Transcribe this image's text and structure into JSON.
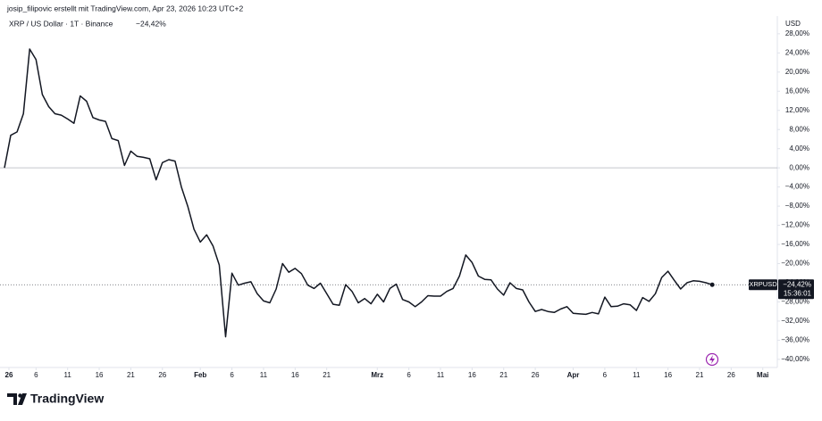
{
  "attribution": "josip_filipovic erstellt mit TradingView.com, Apr 23, 2026 10:23 UTC+2",
  "brand": "TradingView",
  "currency": "USD",
  "symbol": "XRPUSD",
  "countdown": "15:36:01",
  "chart_data": {
    "type": "line",
    "title": "XRP / US Dollar · 1T · Binance",
    "change_label": "−24,42%",
    "xlim": [
      -0.7,
      122.3
    ],
    "xticks": [
      {
        "value": 0,
        "label": "26"
      },
      {
        "value": 5,
        "label": "6"
      },
      {
        "value": 10,
        "label": "11"
      },
      {
        "value": 15,
        "label": "16"
      },
      {
        "value": 20,
        "label": "21"
      },
      {
        "value": 25,
        "label": "26"
      },
      {
        "value": 31,
        "label": "Feb"
      },
      {
        "value": 36,
        "label": "6"
      },
      {
        "value": 41,
        "label": "11"
      },
      {
        "value": 46,
        "label": "16"
      },
      {
        "value": 51,
        "label": "21"
      },
      {
        "value": 59,
        "label": "Mrz"
      },
      {
        "value": 64,
        "label": "6"
      },
      {
        "value": 69,
        "label": "11"
      },
      {
        "value": 74,
        "label": "16"
      },
      {
        "value": 79,
        "label": "21"
      },
      {
        "value": 84,
        "label": "26"
      },
      {
        "value": 90,
        "label": "Apr"
      },
      {
        "value": 95,
        "label": "6"
      },
      {
        "value": 100,
        "label": "11"
      },
      {
        "value": 105,
        "label": "16"
      },
      {
        "value": 110,
        "label": "21"
      },
      {
        "value": 115,
        "label": "26"
      },
      {
        "value": 120,
        "label": "Mai"
      }
    ],
    "ylim": [
      -41.7,
      31.7
    ],
    "yticks": [
      {
        "value": 28,
        "label": "28,00%"
      },
      {
        "value": 24,
        "label": "24,00%"
      },
      {
        "value": 20,
        "label": "20,00%"
      },
      {
        "value": 16,
        "label": "16,00%"
      },
      {
        "value": 12,
        "label": "12,00%"
      },
      {
        "value": 8,
        "label": "8,00%"
      },
      {
        "value": 4,
        "label": "4,00%"
      },
      {
        "value": 0,
        "label": "0,00%"
      },
      {
        "value": -4,
        "label": "−4,00%"
      },
      {
        "value": -8,
        "label": "−8,00%"
      },
      {
        "value": -12,
        "label": "−12,00%"
      },
      {
        "value": -16,
        "label": "−16,00%"
      },
      {
        "value": -20,
        "label": "−20,00%"
      },
      {
        "value": -24,
        "label": "−24,00%"
      },
      {
        "value": -28,
        "label": "−28,00%"
      },
      {
        "value": -32,
        "label": "−32,00%"
      },
      {
        "value": -36,
        "label": "−36,00%"
      },
      {
        "value": -40,
        "label": "−40,00%"
      }
    ],
    "grid": false,
    "baseline": 0,
    "color": "#131722",
    "x": [
      0,
      1,
      2,
      3,
      4,
      5,
      6,
      7,
      8,
      9,
      10,
      11,
      12,
      13,
      14,
      15,
      16,
      17,
      18,
      19,
      20,
      21,
      22,
      23,
      24,
      25,
      26,
      27,
      28,
      29,
      30,
      31,
      32,
      33,
      34,
      35,
      36,
      37,
      38,
      39,
      40,
      41,
      42,
      43,
      44,
      45,
      46,
      47,
      48,
      49,
      50,
      51,
      52,
      53,
      54,
      55,
      56,
      57,
      58,
      59,
      60,
      61,
      62,
      63,
      64,
      65,
      66,
      67,
      68,
      69,
      70,
      71,
      72,
      73,
      74,
      75,
      76,
      77,
      78,
      79,
      80,
      81,
      82,
      83,
      84,
      85,
      86,
      87,
      88,
      89,
      90,
      91,
      92,
      93,
      94,
      95,
      96,
      97,
      98,
      99,
      100,
      101,
      102,
      103,
      104,
      105,
      106,
      107,
      108,
      109,
      110,
      111,
      112
    ],
    "values": [
      0,
      6.8,
      7.5,
      11.3,
      24.8,
      22.6,
      15.3,
      12.8,
      11.3,
      11.0,
      10.2,
      9.3,
      15.0,
      13.9,
      10.5,
      10.0,
      9.7,
      6.1,
      5.7,
      0.5,
      3.5,
      2.4,
      2.2,
      1.9,
      -2.5,
      1.1,
      1.7,
      1.4,
      -4.0,
      -8.0,
      -12.8,
      -15.5,
      -14.0,
      -16.3,
      -20.3,
      -35.3,
      -22.0,
      -24.5,
      -24.1,
      -23.8,
      -26.3,
      -27.8,
      -28.2,
      -25.3,
      -20.0,
      -21.8,
      -21.0,
      -22.1,
      -24.5,
      -25.2,
      -24.1,
      -26.3,
      -28.5,
      -28.7,
      -24.4,
      -25.8,
      -28.2,
      -27.3,
      -28.4,
      -26.4,
      -28.0,
      -25.2,
      -24.3,
      -27.5,
      -28.0,
      -29.0,
      -28.0,
      -26.7,
      -26.8,
      -26.8,
      -25.8,
      -25.2,
      -22.6,
      -18.2,
      -19.8,
      -22.6,
      -23.3,
      -23.4,
      -25.3,
      -26.6,
      -24.0,
      -25.2,
      -25.5,
      -28.0,
      -30.0,
      -29.6,
      -30.0,
      -30.2,
      -29.5,
      -29.0,
      -30.4,
      -30.5,
      -30.6,
      -30.2,
      -30.5,
      -27.0,
      -29.0,
      -28.9,
      -28.4,
      -28.6,
      -29.8,
      -27.1,
      -27.9,
      -26.3,
      -22.9,
      -21.6,
      -23.5,
      -25.3,
      -24.0,
      -23.6,
      -23.7,
      -24.0,
      -24.42
    ]
  }
}
